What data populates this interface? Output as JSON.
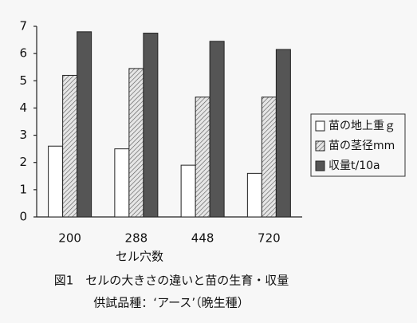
{
  "chart_data": {
    "type": "bar",
    "caption": "図1　セルの大きさの違いと苗の生育・収量",
    "subcaption": "供試品種：‘アース’（晩生種）",
    "x_label": "セル穴数",
    "categories": [
      "200",
      "288",
      "448",
      "720"
    ],
    "series": [
      {
        "name": "苗の地上重ｇ",
        "color": "#ffffff",
        "values": [
          2.6,
          2.5,
          1.9,
          1.6
        ]
      },
      {
        "name": "苗の茎径mm",
        "color": "#c8c8c8",
        "hatch": true,
        "values": [
          5.2,
          5.45,
          4.4,
          4.4
        ]
      },
      {
        "name": "収量t/10a",
        "color": "#555555",
        "values": [
          6.8,
          6.75,
          6.45,
          6.15
        ]
      }
    ],
    "ylim": [
      0,
      7
    ],
    "yticks": [
      0,
      1,
      2,
      3,
      4,
      5,
      6,
      7
    ],
    "legend": "right"
  }
}
